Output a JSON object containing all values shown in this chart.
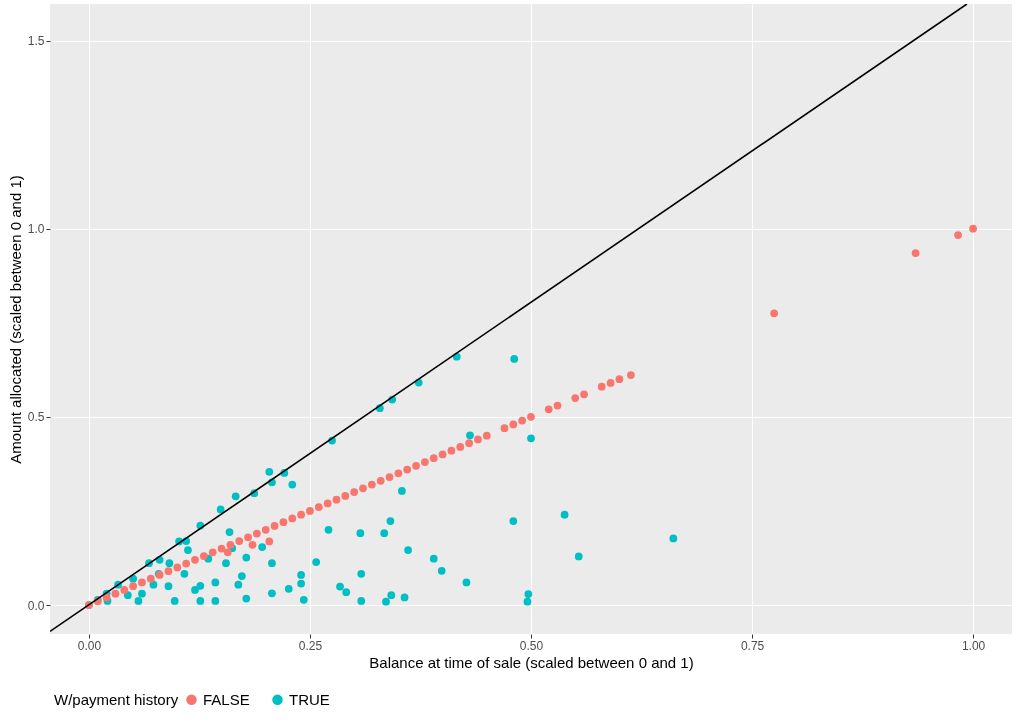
{
  "chart_data": {
    "type": "scatter",
    "xlabel": "Balance at time of sale (scaled between 0 and 1)",
    "ylabel": "Amount allocated (scaled between 0 and 1)",
    "legend_title": "W/payment history",
    "legend": "bottom",
    "grid": true,
    "marker": "circle",
    "xlim": [
      -0.044,
      1.044
    ],
    "ylim": [
      -0.077,
      1.597
    ],
    "xticks": [
      {
        "value": 0,
        "label": "0.00"
      },
      0.25,
      {
        "value": 0.5,
        "label": "0.50"
      },
      0.75,
      {
        "value": 1,
        "label": "1.00"
      }
    ],
    "yticks": [
      {
        "value": 0,
        "label": "0.0"
      },
      0.5,
      {
        "value": 1,
        "label": "1.0"
      },
      1.5
    ],
    "series": [
      {
        "name": "TRUE",
        "color": "#00bfc4",
        "x": [
          0.416,
          0.481,
          0.373,
          0.343,
          0.329,
          0.275,
          0.431,
          0.5,
          0.204,
          0.221,
          0.207,
          0.23,
          0.187,
          0.354,
          0.341,
          0.271,
          0.307,
          0.334,
          0.361,
          0.48,
          0.538,
          0.554,
          0.661,
          0.39,
          0.399,
          0.427,
          0.308,
          0.257,
          0.24,
          0.24,
          0.226,
          0.284,
          0.291,
          0.308,
          0.342,
          0.357,
          0.336,
          0.243,
          0.497,
          0.496,
          0.126,
          0.143,
          0.169,
          0.173,
          0.135,
          0.162,
          0.159,
          0.112,
          0.091,
          0.073,
          0.044,
          0.021,
          0.033,
          0.068,
          0.102,
          0.126,
          0.149,
          0.166,
          0.143,
          0.097,
          0.056,
          0.178,
          0.207,
          0.108,
          0.079,
          0.155,
          0.178,
          0.196,
          0.126,
          0.207,
          0.0,
          0.01,
          0.02,
          0.05,
          0.08,
          0.11,
          0.06,
          0.09,
          0.12
        ],
        "values": [
          0.66,
          0.654,
          0.591,
          0.546,
          0.523,
          0.437,
          0.451,
          0.443,
          0.354,
          0.351,
          0.326,
          0.32,
          0.297,
          0.303,
          0.223,
          0.2,
          0.191,
          0.191,
          0.146,
          0.223,
          0.24,
          0.129,
          0.177,
          0.123,
          0.091,
          0.06,
          0.083,
          0.114,
          0.08,
          0.057,
          0.043,
          0.049,
          0.034,
          0.011,
          0.026,
          0.02,
          0.009,
          0.014,
          0.029,
          0.009,
          0.051,
          0.06,
          0.054,
          0.077,
          0.123,
          0.151,
          0.194,
          0.146,
          0.111,
          0.054,
          0.026,
          0.011,
          0.054,
          0.111,
          0.169,
          0.211,
          0.254,
          0.289,
          0.011,
          0.011,
          0.011,
          0.017,
          0.031,
          0.083,
          0.083,
          0.111,
          0.126,
          0.154,
          0.011,
          0.111,
          0.0,
          0.014,
          0.03,
          0.07,
          0.12,
          0.17,
          0.03,
          0.05,
          0.04
        ]
      },
      {
        "name": "FALSE",
        "color": "#f8766d",
        "x": [
          0.0,
          0.01,
          0.02,
          0.03,
          0.04,
          0.05,
          0.06,
          0.07,
          0.08,
          0.09,
          0.1,
          0.11,
          0.12,
          0.13,
          0.14,
          0.15,
          0.16,
          0.17,
          0.18,
          0.19,
          0.2,
          0.21,
          0.22,
          0.23,
          0.24,
          0.25,
          0.26,
          0.27,
          0.28,
          0.29,
          0.3,
          0.31,
          0.32,
          0.33,
          0.34,
          0.35,
          0.36,
          0.37,
          0.38,
          0.39,
          0.4,
          0.41,
          0.42,
          0.43,
          0.44,
          0.45,
          0.47,
          0.48,
          0.49,
          0.5,
          0.52,
          0.53,
          0.55,
          0.56,
          0.58,
          0.59,
          0.6,
          0.613,
          0.775,
          0.935,
          0.983,
          1.0,
          0.157,
          0.185,
          0.204
        ],
        "values": [
          0.0,
          0.01,
          0.02,
          0.03,
          0.04,
          0.05,
          0.06,
          0.07,
          0.08,
          0.09,
          0.1,
          0.11,
          0.12,
          0.13,
          0.14,
          0.15,
          0.16,
          0.17,
          0.18,
          0.19,
          0.2,
          0.21,
          0.22,
          0.23,
          0.24,
          0.25,
          0.26,
          0.27,
          0.28,
          0.29,
          0.3,
          0.31,
          0.32,
          0.33,
          0.34,
          0.35,
          0.36,
          0.37,
          0.38,
          0.39,
          0.4,
          0.41,
          0.42,
          0.43,
          0.44,
          0.45,
          0.47,
          0.48,
          0.49,
          0.5,
          0.52,
          0.53,
          0.55,
          0.56,
          0.58,
          0.59,
          0.6,
          0.611,
          0.775,
          0.935,
          0.983,
          1.0,
          0.14,
          0.16,
          0.169
        ]
      },
      {
        "type": "line",
        "marker": "none",
        "color": "#000000",
        "x": [
          -0.044,
          0.993
        ],
        "values": [
          -0.07,
          1.597
        ]
      }
    ]
  }
}
